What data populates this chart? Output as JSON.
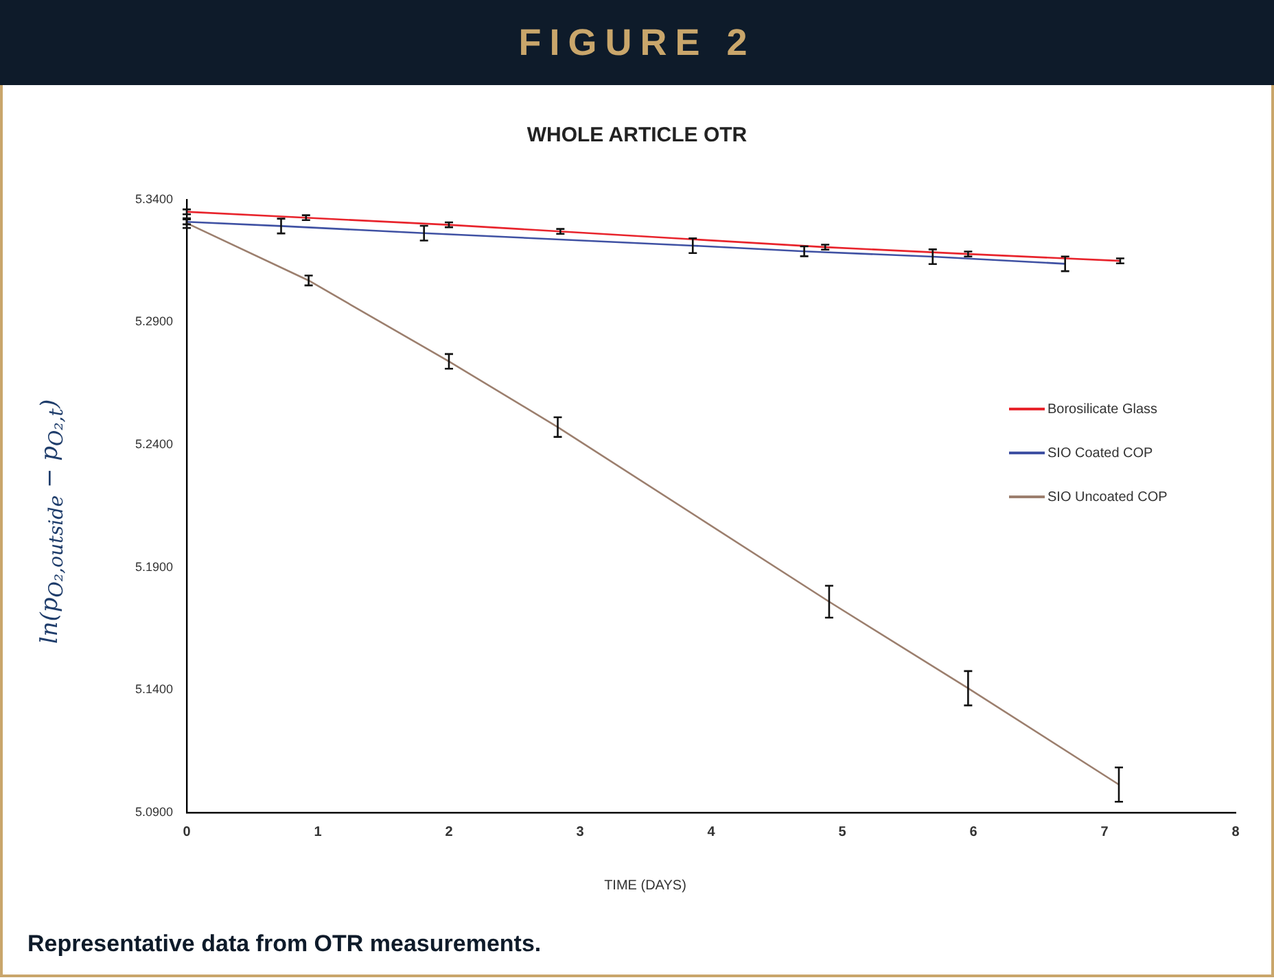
{
  "chart_data": {
    "type": "line",
    "title": "WHOLE ARTICLE OTR",
    "xlabel": "TIME (DAYS)",
    "ylabel": "ln(p$_{O₂,outside}$ − p$_{O₂,t}$)",
    "annotations": [
      "FIGURE 2",
      "Representative data from OTR measurements."
    ],
    "xlim": [
      0,
      8
    ],
    "xticks": [
      0,
      1,
      2,
      3,
      4,
      5,
      6,
      7,
      8
    ],
    "ylim": [
      5.09,
      5.34
    ],
    "yticks": [
      {
        "value": 5.09,
        "label": "5.0900"
      },
      {
        "value": 5.14,
        "label": "5.1400"
      },
      {
        "value": 5.19,
        "label": "5.1900"
      },
      {
        "value": 5.24,
        "label": "5.2400"
      },
      {
        "value": 5.29,
        "label": "5.2900"
      },
      {
        "value": 5.34,
        "label": "5.3400"
      }
    ],
    "grid": false,
    "legend": "right",
    "marker": "none",
    "line_style": "solid",
    "series": [
      {
        "name": "Borosilicate Glass",
        "color": "#e8242c",
        "x": [
          0,
          0.91,
          2.0,
          2.85,
          4.87,
          5.96,
          7.12
        ],
        "values": [
          5.335,
          5.3326,
          5.3297,
          5.327,
          5.3206,
          5.3178,
          5.315
        ],
        "errors": [
          0.001,
          0.001,
          0.001,
          0.001,
          0.001,
          0.001,
          0.001
        ]
      },
      {
        "name": "SIO Coated COP",
        "color": "#3f51a3",
        "x": [
          0,
          0.72,
          1.81,
          3.86,
          4.71,
          5.69,
          6.7
        ],
        "values": [
          5.3309,
          5.3292,
          5.3263,
          5.3212,
          5.3189,
          5.3167,
          5.3138
        ],
        "errors": [
          0.001,
          0.003,
          0.003,
          0.003,
          0.002,
          0.003,
          0.003
        ]
      },
      {
        "name": "SIO Uncoated COP",
        "color": "#9c7f6e",
        "x": [
          0,
          0.93,
          2.0,
          2.83,
          4.9,
          5.96,
          7.11
        ],
        "values": [
          5.3304,
          5.307,
          5.274,
          5.2472,
          5.176,
          5.1407,
          5.1014
        ],
        "errors": [
          0.002,
          0.002,
          0.003,
          0.004,
          0.0065,
          0.007,
          0.007
        ]
      }
    ]
  }
}
